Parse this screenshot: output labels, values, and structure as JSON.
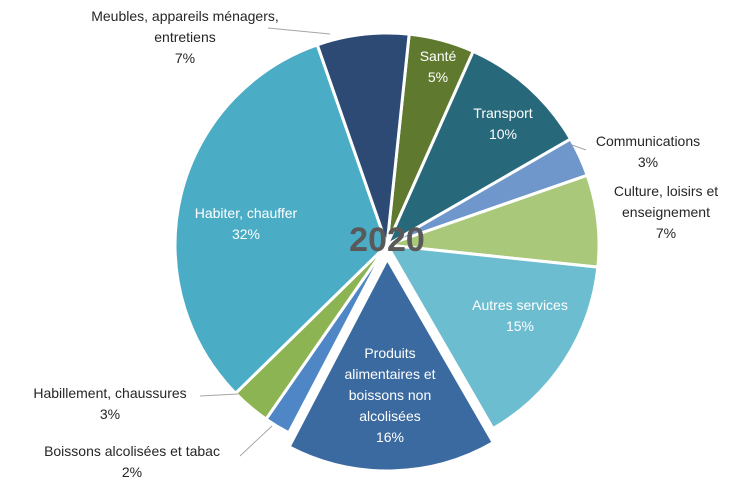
{
  "chart_data": {
    "type": "pie",
    "title": "2020",
    "categories": [
      "Santé",
      "Transport",
      "Communications",
      "Culture, loisirs et enseignement",
      "Autres services",
      "Produits alimentaires et boissons non alcolisées",
      "Boissons alcolisées et tabac",
      "Habillement, chaussures",
      "Habiter, chauffer",
      "Meubles, appareils ménagers, entretiens"
    ],
    "values": [
      5,
      10,
      3,
      7,
      15,
      16,
      2,
      3,
      32,
      7
    ],
    "value_labels": [
      "5%",
      "10%",
      "3%",
      "7%",
      "15%",
      "16%",
      "2%",
      "3%",
      "32%",
      "7%"
    ],
    "colors": [
      "#5f7a2e",
      "#27697a",
      "#6f97cc",
      "#a9c87a",
      "#6dbdd1",
      "#3b6aa0",
      "#4f86c6",
      "#8db452",
      "#4bacc6",
      "#2c4a74"
    ]
  }
}
